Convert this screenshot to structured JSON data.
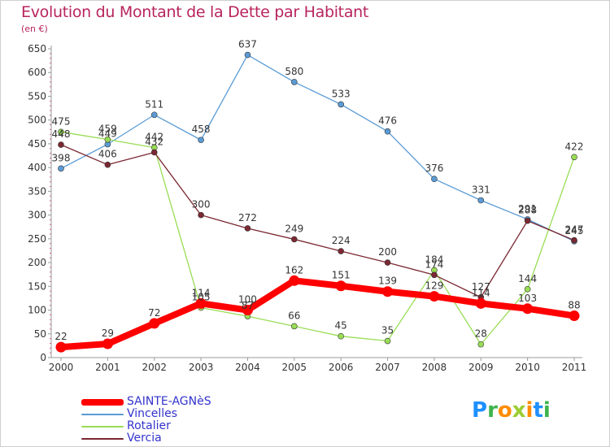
{
  "title": "Evolution du Montant de la Dette par Habitant",
  "subtitle": "(en €)",
  "logo": {
    "letters": [
      "P",
      "r",
      "o",
      "x",
      "i",
      "t",
      "i"
    ],
    "colors": [
      "#1e90ff",
      "#3cb44b",
      "#ff8c00",
      "#9acd32",
      "#ff8c00",
      "#1e90ff",
      "#3cb44b"
    ]
  },
  "chart_data": {
    "type": "line",
    "title": "Evolution du Montant de la Dette par Habitant",
    "subtitle": "(en €)",
    "x": [
      "2000",
      "2001",
      "2002",
      "2003",
      "2004",
      "2005",
      "2006",
      "2007",
      "2008",
      "2009",
      "2010",
      "2011"
    ],
    "ylim": [
      0,
      650
    ],
    "yticks": [
      0,
      50,
      100,
      150,
      200,
      250,
      300,
      350,
      400,
      450,
      500,
      550,
      600,
      650
    ],
    "grid": false,
    "legend": "bottom-left",
    "series": [
      {
        "name": "SAINTE-AGNèS",
        "color": "#ff0000",
        "values": [
          22,
          29,
          72,
          114,
          100,
          162,
          151,
          139,
          129,
          114,
          103,
          88
        ],
        "emphasis": true
      },
      {
        "name": "Vincelles",
        "color": "#5b9bd5",
        "values": [
          398,
          449,
          511,
          458,
          637,
          580,
          533,
          476,
          376,
          331,
          291,
          245
        ]
      },
      {
        "name": "Rotalier",
        "color": "#99dd55",
        "values": [
          475,
          459,
          442,
          105,
          87,
          66,
          45,
          35,
          184,
          28,
          144,
          422
        ]
      },
      {
        "name": "Vercia",
        "color": "#7b2832",
        "values": [
          448,
          406,
          432,
          300,
          272,
          249,
          224,
          200,
          174,
          127,
          288,
          247
        ]
      }
    ]
  }
}
